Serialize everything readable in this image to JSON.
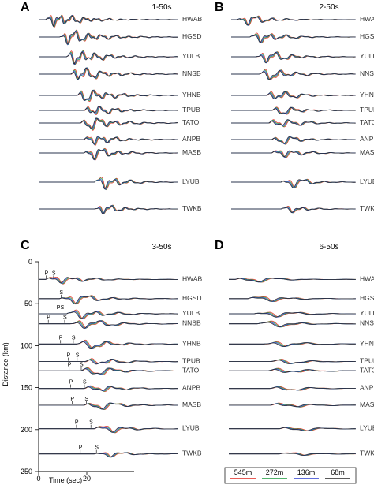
{
  "chart_data": {
    "type": "line",
    "colors": {
      "545m": "#e0271e",
      "272m": "#1a9a3c",
      "136m": "#2c3fd0",
      "68m": "#222222"
    },
    "legend": {
      "placement": "bottom-right",
      "entries": [
        {
          "name": "545m",
          "color": "#e0271e"
        },
        {
          "name": "272m",
          "color": "#1a9a3c"
        },
        {
          "name": "136m",
          "color": "#2c3fd0"
        },
        {
          "name": "68m",
          "color": "#222222"
        }
      ]
    },
    "panels": [
      {
        "label": "A",
        "title": "1-50s",
        "stations": [
          {
            "name": "HWAB",
            "onset": 2,
            "amp": 1.0,
            "period": 2.2,
            "dur": 16
          },
          {
            "name": "HGSD",
            "onset": 6,
            "amp": 1.1,
            "period": 2.4,
            "dur": 16
          },
          {
            "name": "YULB",
            "onset": 8,
            "amp": 1.2,
            "period": 2.4,
            "dur": 14
          },
          {
            "name": "NNSB",
            "onset": 9,
            "amp": 1.2,
            "period": 2.6,
            "dur": 14
          },
          {
            "name": "YHNB",
            "onset": 11,
            "amp": 1.1,
            "period": 2.6,
            "dur": 14
          },
          {
            "name": "TPUB",
            "onset": 13,
            "amp": 1.0,
            "period": 2.6,
            "dur": 12
          },
          {
            "name": "TATO",
            "onset": 12,
            "amp": 1.1,
            "period": 2.8,
            "dur": 14
          },
          {
            "name": "ANPB",
            "onset": 13,
            "amp": 1.0,
            "period": 2.6,
            "dur": 12
          },
          {
            "name": "MASB",
            "onset": 13,
            "amp": 1.1,
            "period": 2.8,
            "dur": 12
          },
          {
            "name": "LYUB",
            "onset": 16,
            "amp": 1.4,
            "period": 3.0,
            "dur": 10
          },
          {
            "name": "TWKB",
            "onset": 16,
            "amp": 0.9,
            "period": 2.6,
            "dur": 10
          }
        ]
      },
      {
        "label": "B",
        "title": "2-50s",
        "stations": [
          {
            "name": "HWAB",
            "onset": 2,
            "amp": 0.9,
            "period": 3.2,
            "dur": 14
          },
          {
            "name": "HGSD",
            "onset": 6,
            "amp": 1.0,
            "period": 3.4,
            "dur": 14
          },
          {
            "name": "YULB",
            "onset": 8,
            "amp": 1.1,
            "period": 3.4,
            "dur": 14
          },
          {
            "name": "NNSB",
            "onset": 9,
            "amp": 1.1,
            "period": 3.6,
            "dur": 14
          },
          {
            "name": "YHNB",
            "onset": 11,
            "amp": 1.0,
            "period": 3.6,
            "dur": 13
          },
          {
            "name": "TPUB",
            "onset": 13,
            "amp": 0.9,
            "period": 3.6,
            "dur": 12
          },
          {
            "name": "TATO",
            "onset": 12,
            "amp": 1.0,
            "period": 3.8,
            "dur": 13
          },
          {
            "name": "ANPB",
            "onset": 13,
            "amp": 0.9,
            "period": 3.6,
            "dur": 12
          },
          {
            "name": "MASB",
            "onset": 13,
            "amp": 1.0,
            "period": 3.8,
            "dur": 12
          },
          {
            "name": "LYUB",
            "onset": 16,
            "amp": 1.3,
            "period": 4.0,
            "dur": 10
          },
          {
            "name": "TWKB",
            "onset": 16,
            "amp": 0.8,
            "period": 3.6,
            "dur": 10
          }
        ]
      },
      {
        "label": "C",
        "title": "3-50s",
        "stations": [
          {
            "name": "HWAB",
            "onset": 2,
            "amp": 0.9,
            "period": 4.2,
            "dur": 14
          },
          {
            "name": "HGSD",
            "onset": 6,
            "amp": 1.0,
            "period": 4.4,
            "dur": 14
          },
          {
            "name": "YULB",
            "onset": 8,
            "amp": 1.0,
            "period": 4.4,
            "dur": 14
          },
          {
            "name": "NNSB",
            "onset": 9,
            "amp": 1.0,
            "period": 4.6,
            "dur": 14
          },
          {
            "name": "YHNB",
            "onset": 11,
            "amp": 1.0,
            "period": 4.6,
            "dur": 13
          },
          {
            "name": "TPUB",
            "onset": 13,
            "amp": 0.9,
            "period": 4.6,
            "dur": 12
          },
          {
            "name": "TATO",
            "onset": 12,
            "amp": 1.0,
            "period": 4.8,
            "dur": 13
          },
          {
            "name": "ANPB",
            "onset": 13,
            "amp": 0.9,
            "period": 4.6,
            "dur": 12
          },
          {
            "name": "MASB",
            "onset": 13,
            "amp": 1.0,
            "period": 4.8,
            "dur": 12
          },
          {
            "name": "LYUB",
            "onset": 16,
            "amp": 1.2,
            "period": 5.0,
            "dur": 10
          },
          {
            "name": "TWKB",
            "onset": 16,
            "amp": 0.8,
            "period": 4.6,
            "dur": 10
          }
        ]
      },
      {
        "label": "D",
        "title": "6-50s",
        "stations": [
          {
            "name": "HWAB",
            "onset": 2,
            "amp": 0.8,
            "period": 7.0,
            "dur": 14
          },
          {
            "name": "HGSD",
            "onset": 6,
            "amp": 0.9,
            "period": 7.2,
            "dur": 14
          },
          {
            "name": "YULB",
            "onset": 8,
            "amp": 0.9,
            "period": 7.2,
            "dur": 14
          },
          {
            "name": "NNSB",
            "onset": 9,
            "amp": 0.9,
            "period": 7.4,
            "dur": 14
          },
          {
            "name": "YHNB",
            "onset": 11,
            "amp": 0.9,
            "period": 7.4,
            "dur": 13
          },
          {
            "name": "TPUB",
            "onset": 13,
            "amp": 0.8,
            "period": 7.4,
            "dur": 12
          },
          {
            "name": "TATO",
            "onset": 12,
            "amp": 0.9,
            "period": 7.6,
            "dur": 13
          },
          {
            "name": "ANPB",
            "onset": 13,
            "amp": 0.8,
            "period": 7.4,
            "dur": 12
          },
          {
            "name": "MASB",
            "onset": 13,
            "amp": 0.9,
            "period": 7.6,
            "dur": 12
          },
          {
            "name": "LYUB",
            "onset": 16,
            "amp": 1.1,
            "period": 8.0,
            "dur": 10
          },
          {
            "name": "TWKB",
            "onset": 16,
            "amp": 0.7,
            "period": 7.4,
            "dur": 10
          }
        ]
      }
    ],
    "station_distance_km": [
      21,
      44,
      62,
      74,
      98,
      119,
      130,
      151,
      171,
      199,
      229
    ],
    "phase_picks": [
      {
        "label": "P",
        "time": 3.1,
        "distance": 21
      },
      {
        "label": "S",
        "time": 6.2,
        "distance": 21
      },
      {
        "label": "S",
        "time": 9.3,
        "distance": 44
      },
      {
        "label": "P",
        "time": 8.1,
        "distance": 62
      },
      {
        "label": "S",
        "time": 9.7,
        "distance": 62
      },
      {
        "label": "P",
        "time": 4.0,
        "distance": 74
      },
      {
        "label": "S",
        "time": 10.8,
        "distance": 74
      },
      {
        "label": "P",
        "time": 9.1,
        "distance": 98
      },
      {
        "label": "S",
        "time": 14.4,
        "distance": 98
      },
      {
        "label": "P",
        "time": 12.3,
        "distance": 119
      },
      {
        "label": "S",
        "time": 16.0,
        "distance": 119
      },
      {
        "label": "P",
        "time": 12.7,
        "distance": 130
      },
      {
        "label": "S",
        "time": 17.7,
        "distance": 130
      },
      {
        "label": "P",
        "time": 13.3,
        "distance": 151
      },
      {
        "label": "S",
        "time": 19.0,
        "distance": 151
      },
      {
        "label": "P",
        "time": 13.9,
        "distance": 171
      },
      {
        "label": "S",
        "time": 19.8,
        "distance": 171
      },
      {
        "label": "P",
        "time": 15.7,
        "distance": 199
      },
      {
        "label": "S",
        "time": 21.7,
        "distance": 199
      },
      {
        "label": "P",
        "time": 17.3,
        "distance": 229
      },
      {
        "label": "S",
        "time": 24.0,
        "distance": 229
      }
    ],
    "y_axis": {
      "label": "Distance (km)",
      "range": [
        0,
        250
      ],
      "ticks": [
        0,
        50,
        100,
        150,
        200,
        250
      ],
      "inverted": true
    },
    "x_axis": {
      "label": "Time (sec)",
      "range": [
        0,
        40
      ],
      "ticks": [
        0,
        20
      ]
    }
  }
}
